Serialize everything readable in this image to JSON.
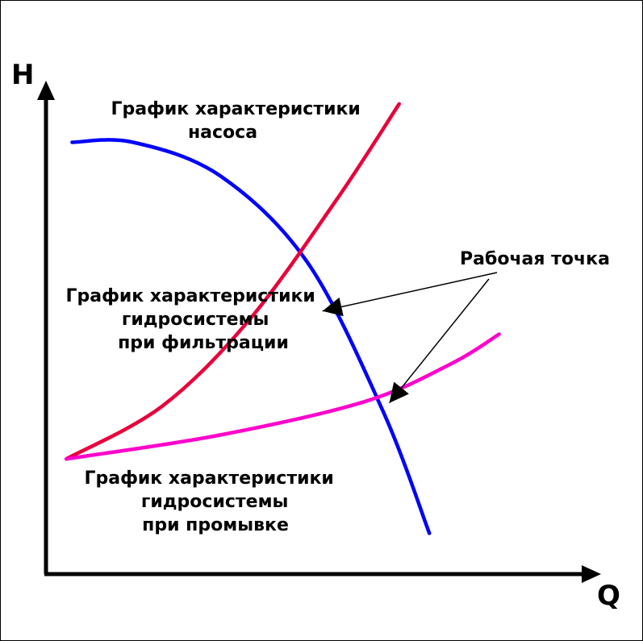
{
  "chart_data": {
    "type": "line",
    "title": "",
    "xlabel": "Q",
    "ylabel": "H",
    "grid": false,
    "xlim": [
      0,
      10
    ],
    "ylim": [
      0,
      10
    ],
    "axis_color": "#000000",
    "series": [
      {
        "key": "pump",
        "color": "#0000ff",
        "label_lines": [
          "График характеристики",
          "насоса"
        ],
        "points": [
          [
            0.45,
            9.0
          ],
          [
            1.5,
            9.0
          ],
          [
            3.0,
            8.3
          ],
          [
            4.5,
            6.5
          ],
          [
            5.8,
            3.4
          ],
          [
            6.6,
            0.85
          ]
        ]
      },
      {
        "key": "filtration",
        "color": "#e8003a",
        "label_lines": [
          "График характеристики",
          "гидросистемы",
          "при фильтрации"
        ],
        "points": [
          [
            0.35,
            2.4
          ],
          [
            2.0,
            3.5
          ],
          [
            3.5,
            5.3
          ],
          [
            5.0,
            7.8
          ],
          [
            6.08,
            9.8
          ]
        ]
      },
      {
        "key": "flushing",
        "color": "#ff00cc",
        "label_lines": [
          "График характеристики",
          "гидросистемы",
          "при промывке"
        ],
        "points": [
          [
            0.35,
            2.4
          ],
          [
            3.0,
            2.9
          ],
          [
            5.5,
            3.6
          ],
          [
            7.0,
            4.4
          ],
          [
            7.8,
            5.0
          ]
        ]
      }
    ],
    "annotation": {
      "text": "Рабочая точка",
      "arrow_color": "#000000",
      "targets": [
        [
          4.65,
          5.45
        ],
        [
          5.8,
          3.4
        ]
      ]
    }
  }
}
